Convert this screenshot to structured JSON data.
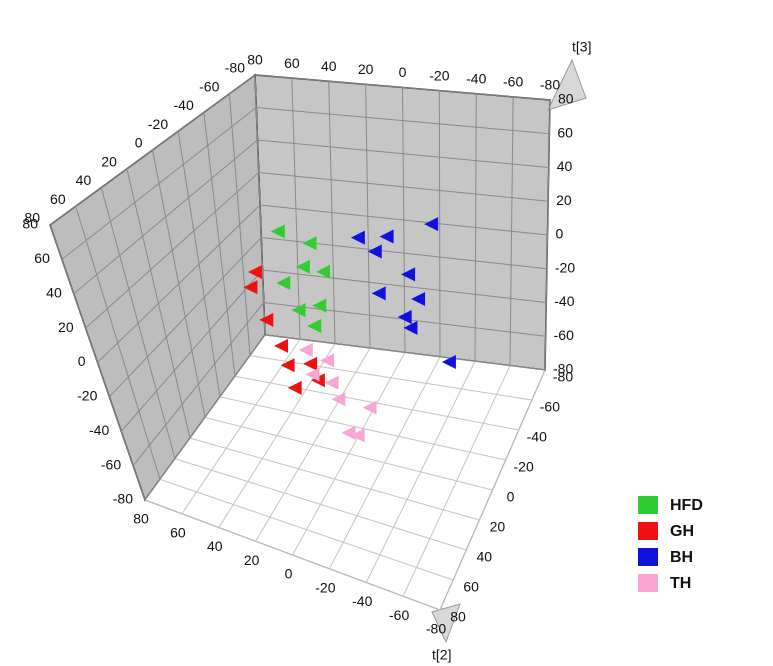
{
  "chart_data": {
    "type": "scatter3d",
    "axis_labels": {
      "y": "t[2]",
      "z": "t[3]"
    },
    "xlim": [
      80,
      -80
    ],
    "ylim": [
      -80,
      80
    ],
    "zlim": [
      -80,
      80
    ],
    "xticks": [
      -80,
      -60,
      -40,
      -20,
      0,
      20,
      40,
      60,
      80
    ],
    "yticks": [
      -80,
      -60,
      -40,
      -20,
      0,
      20,
      40,
      60,
      80
    ],
    "zticks": [
      -80,
      -60,
      -40,
      -20,
      0,
      20,
      40,
      60,
      80
    ],
    "grid": true,
    "legend": "lower right",
    "series": [
      {
        "name": "HFD",
        "color": "#33cc33",
        "x": [
          46,
          29,
          34,
          23,
          46,
          39,
          27,
          31
        ],
        "y": [
          -40,
          -40,
          -40,
          -40,
          -40,
          -40,
          -40,
          -40
        ],
        "z": [
          14,
          10,
          -5,
          -6,
          -17,
          -32,
          -27,
          -40
        ]
      },
      {
        "name": "GH",
        "color": "#ee1111",
        "x": [
          42,
          46,
          40,
          34,
          32,
          19,
          30,
          16
        ],
        "y": [
          -10,
          -10,
          -10,
          -10,
          -10,
          -10,
          -10,
          -10
        ],
        "z": [
          10,
          0,
          -18,
          -32,
          -43,
          -39,
          -56,
          -48
        ]
      },
      {
        "name": "BH",
        "color": "#1111dd",
        "x": [
          14,
          -2,
          5,
          -27,
          -13,
          4,
          -18,
          -10,
          -13,
          -34
        ],
        "y": [
          -60,
          -60,
          -60,
          -60,
          -60,
          -60,
          -60,
          -60,
          -60,
          -60
        ],
        "z": [
          2,
          5,
          -5,
          16,
          -16,
          -30,
          -30,
          -42,
          -48,
          -65
        ]
      },
      {
        "name": "TH",
        "color": "#f7a6d6",
        "x": [
          1,
          -10,
          0,
          -10,
          -12,
          -29,
          -14,
          -19
        ],
        "y": [
          20,
          20,
          20,
          20,
          20,
          20,
          20,
          20
        ],
        "z": [
          -5,
          -8,
          -19,
          -21,
          -30,
          -30,
          -49,
          -49
        ]
      }
    ]
  }
}
